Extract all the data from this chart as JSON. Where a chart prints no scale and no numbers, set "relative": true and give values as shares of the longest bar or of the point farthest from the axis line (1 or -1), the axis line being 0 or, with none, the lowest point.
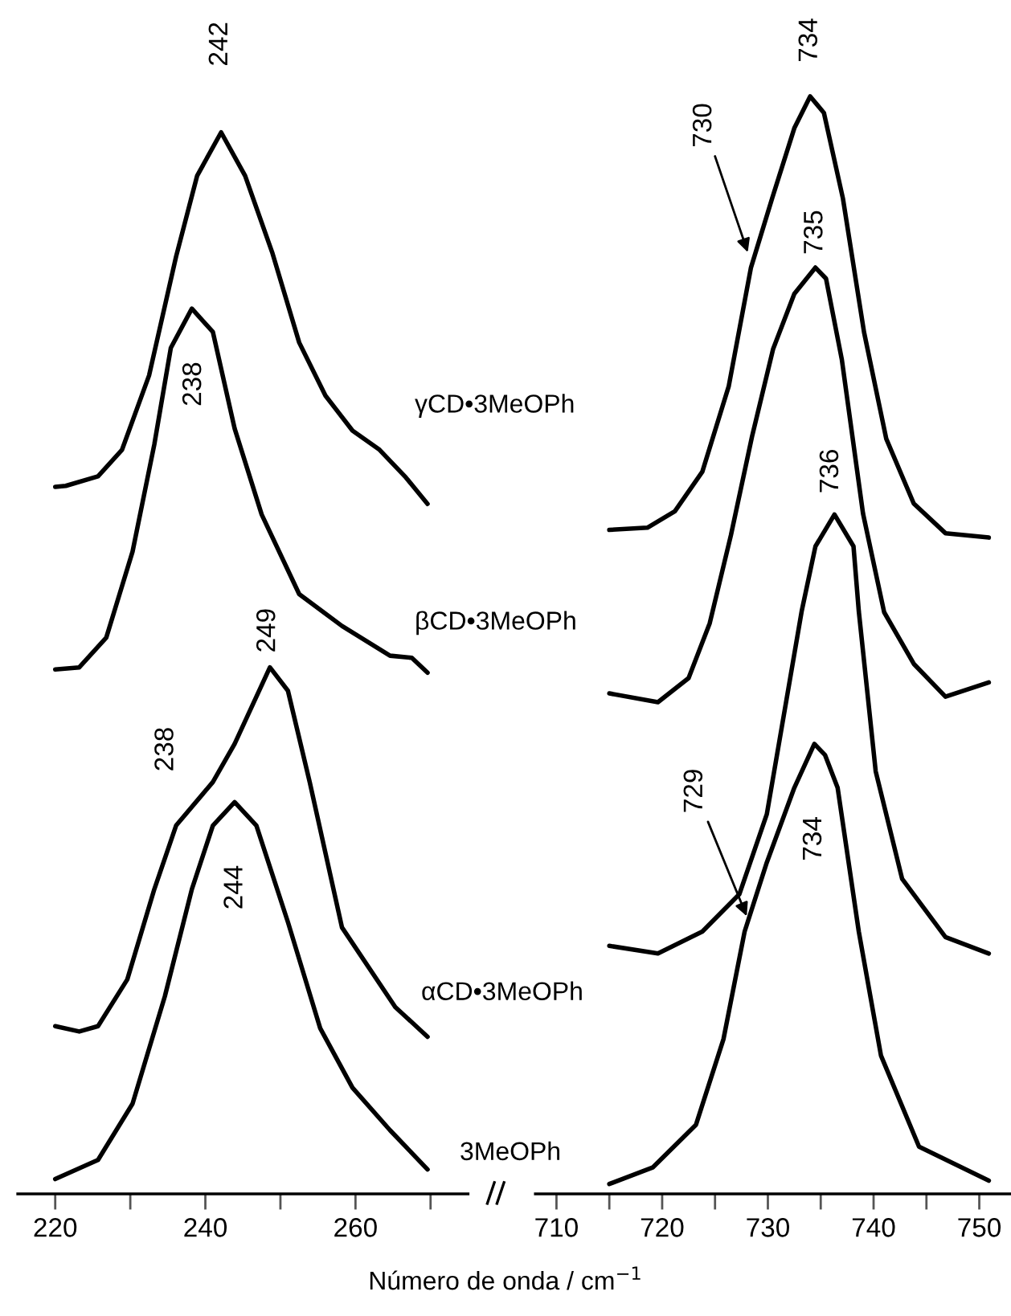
{
  "chart_data": [
    {
      "type": "line",
      "relative": true,
      "xlabel": "Número de onda / cm$^{−1}$",
      "legend": false,
      "grid": false,
      "tick_labels": "x",
      "xlim": [
        215,
        275
      ],
      "xticks": [
        220,
        {
          "value": 230,
          "label": null
        },
        240,
        {
          "value": 250,
          "label": null
        },
        260,
        {
          "value": 270,
          "label": null
        }
      ],
      "series": [
        {
          "name": "γCD•3MeOPh",
          "color": "#000000",
          "x": [
            220,
            221.4,
            225.7,
            228.9,
            232.5,
            236.1,
            238.9,
            242.1,
            245.3,
            248.9,
            252.5,
            256.0,
            259.6,
            263.2,
            266.7,
            269.6
          ],
          "values": [
            0.666,
            0.667,
            0.676,
            0.701,
            0.771,
            0.883,
            0.959,
            1.0,
            0.959,
            0.887,
            0.802,
            0.752,
            0.719,
            0.701,
            0.675,
            0.65
          ]
        },
        {
          "name": "βCD•3MeOPh",
          "color": "#000000",
          "x": [
            220,
            223.2,
            226.8,
            230.3,
            233.2,
            235.4,
            238.2,
            241.0,
            243.9,
            247.5,
            252.5,
            258.2,
            264.6,
            267.5,
            269.6
          ],
          "values": [
            0.494,
            0.496,
            0.524,
            0.605,
            0.706,
            0.797,
            0.834,
            0.812,
            0.721,
            0.64,
            0.565,
            0.535,
            0.507,
            0.505,
            0.491
          ]
        },
        {
          "name": "αCD•3MeOPh",
          "color": "#000000",
          "x": [
            220,
            223.2,
            225.7,
            229.6,
            233.2,
            236.1,
            241.0,
            243.9,
            248.6,
            251.0,
            253.9,
            258.2,
            265.3,
            269.6
          ],
          "values": [
            0.158,
            0.153,
            0.158,
            0.202,
            0.287,
            0.347,
            0.388,
            0.424,
            0.496,
            0.474,
            0.388,
            0.251,
            0.176,
            0.148
          ]
        },
        {
          "name": "3MeOPh",
          "color": "#000000",
          "x": [
            220,
            225.7,
            230.3,
            234.6,
            238.2,
            241.0,
            243.9,
            246.8,
            251.0,
            255.3,
            259.6,
            264.6,
            269.6
          ],
          "values": [
            0.014,
            0.032,
            0.085,
            0.186,
            0.287,
            0.347,
            0.369,
            0.347,
            0.256,
            0.156,
            0.1,
            0.06,
            0.023
          ]
        }
      ],
      "annotations": [
        {
          "text": "242",
          "x": 242,
          "y": 1.0
        },
        {
          "text": "238",
          "x": 238.5,
          "y": 0.834
        },
        {
          "text": "249",
          "x": 249,
          "y": 0.496
        },
        {
          "text": "238",
          "x": 238,
          "y": 0.375
        },
        {
          "text": "244",
          "x": 244,
          "y": 0.369
        }
      ]
    },
    {
      "type": "line",
      "relative": true,
      "legend": false,
      "grid": false,
      "tick_labels": "x",
      "xlim": [
        708,
        753
      ],
      "xticks": [
        710,
        {
          "value": 715,
          "label": null
        },
        720,
        {
          "value": 725,
          "label": null
        },
        730,
        {
          "value": 735,
          "label": null
        },
        740,
        {
          "value": 745,
          "label": null
        },
        750
      ],
      "series": [
        {
          "color": "#000000",
          "x": [
            715.0,
            718.6,
            721.2,
            723.8,
            726.3,
            728.4,
            730.4,
            732.5,
            734.0,
            735.3,
            737.1,
            739.1,
            741.2,
            743.8,
            746.8,
            750.9
          ],
          "values": [
            0.605,
            0.607,
            0.622,
            0.658,
            0.736,
            0.844,
            0.907,
            0.971,
            1.0,
            0.985,
            0.907,
            0.785,
            0.688,
            0.629,
            0.602,
            0.598
          ]
        },
        {
          "color": "#000000",
          "x": [
            715.0,
            719.6,
            722.5,
            724.5,
            726.5,
            728.5,
            730.5,
            732.5,
            734.5,
            735.5,
            737.0,
            739.0,
            741.0,
            743.8,
            746.8,
            750.9
          ],
          "values": [
            0.456,
            0.448,
            0.47,
            0.52,
            0.6,
            0.69,
            0.77,
            0.82,
            0.844,
            0.834,
            0.76,
            0.62,
            0.53,
            0.483,
            0.453,
            0.466
          ]
        },
        {
          "color": "#000000",
          "x": [
            715.0,
            719.6,
            723.8,
            727.3,
            729.9,
            733.2,
            734.5,
            736.3,
            738.1,
            738.6,
            740.2,
            742.7,
            746.8,
            750.9
          ],
          "values": [
            0.226,
            0.219,
            0.239,
            0.273,
            0.346,
            0.531,
            0.59,
            0.619,
            0.59,
            0.531,
            0.385,
            0.287,
            0.234,
            0.219
          ]
        },
        {
          "color": "#000000",
          "x": [
            715.0,
            719.1,
            723.2,
            725.8,
            727.8,
            729.9,
            732.5,
            734.4,
            735.4,
            736.6,
            738.6,
            740.7,
            744.3,
            750.9
          ],
          "values": [
            0.009,
            0.024,
            0.063,
            0.141,
            0.239,
            0.302,
            0.37,
            0.41,
            0.4,
            0.37,
            0.239,
            0.126,
            0.043,
            0.012
          ]
        }
      ],
      "annotations": [
        {
          "text": "734",
          "x": 734,
          "y": 1.0
        },
        {
          "text": "730",
          "x": 728.1,
          "y": 0.858
        },
        {
          "text": "735",
          "x": 734.5,
          "y": 0.844
        },
        {
          "text": "736",
          "x": 736.3,
          "y": 0.619
        },
        {
          "text": "729",
          "x": 728,
          "y": 0.253
        },
        {
          "text": "734",
          "x": 734.4,
          "y": 0.41
        }
      ]
    }
  ]
}
